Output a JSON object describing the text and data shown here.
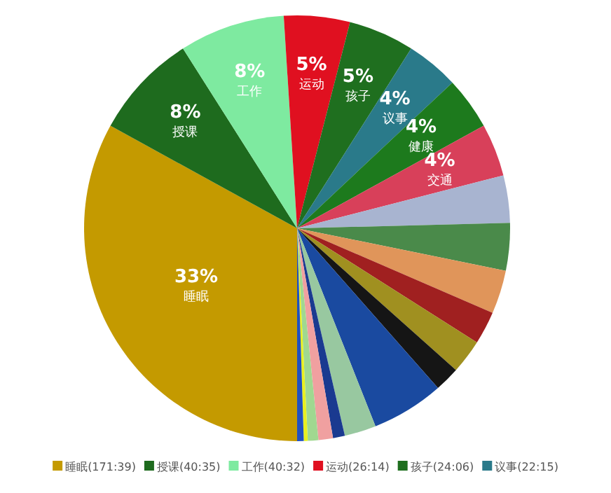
{
  "chart_data": {
    "type": "pie",
    "categories": [
      "睡眠(171:39)",
      "授课(40:35)",
      "工作(40:32)",
      "运动(26:14)",
      "孩子(24:06)",
      "议事(22:15)",
      null,
      null,
      null,
      null,
      null,
      null,
      null,
      null,
      null,
      null,
      null,
      null,
      null,
      null,
      null
    ],
    "values": [
      33,
      8,
      8,
      5,
      5,
      4,
      4,
      4,
      3.6,
      3.6,
      3.3,
      2.5,
      2.6,
      1.9,
      5.5,
      2.4,
      0.9,
      1.1,
      0.8,
      0.3,
      0.5
    ],
    "value_labels": [
      "33%\n睡眠",
      "8%\n授课",
      "8%\n工作",
      "5%\n运动",
      "5%\n孩子",
      "4%\n议事",
      "4%\n健康",
      "4%\n交通",
      null,
      null,
      null,
      null,
      null,
      null,
      null,
      null,
      null,
      null,
      null,
      null,
      null
    ],
    "colors": [
      "#c49a00",
      "#1e6b1e",
      "#7eeaa0",
      "#e01020",
      "#1f6f1f",
      "#2a7a8a",
      "#1d7a1d",
      "#d8405a",
      "#a8b4d0",
      "#4a8a4a",
      "#e0955a",
      "#a02020",
      "#a09020",
      "#151515",
      "#1a4aa0",
      "#98c8a0",
      "#1a3a90",
      "#f0a0a0",
      "#a0d890",
      "#e8f020",
      "#2050c0"
    ],
    "legend": "bottom"
  }
}
